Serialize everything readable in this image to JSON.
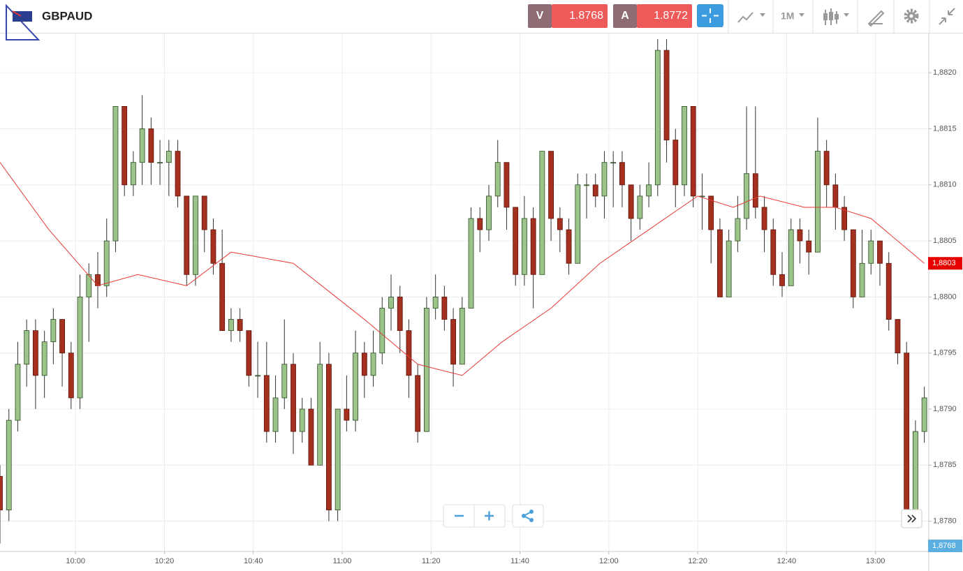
{
  "header": {
    "symbol": "GBPAUD",
    "sell_label": "V",
    "sell_price": "1.8768",
    "buy_label": "A",
    "buy_price": "1.8772",
    "timeframe": "1M"
  },
  "chart_data": {
    "type": "candlestick",
    "x": [
      "09:43",
      "09:45",
      "09:47",
      "09:49",
      "09:51",
      "09:53",
      "09:55",
      "09:57",
      "09:59",
      "10:01",
      "10:03",
      "10:05",
      "10:07",
      "10:09",
      "10:11",
      "10:13",
      "10:15",
      "10:17",
      "10:19",
      "10:21",
      "10:23",
      "10:25",
      "10:27",
      "10:29",
      "10:31",
      "10:33",
      "10:35",
      "10:37",
      "10:39",
      "10:41",
      "10:43",
      "10:45",
      "10:47",
      "10:49",
      "10:51",
      "10:53",
      "10:55",
      "10:57",
      "10:59",
      "11:01",
      "11:03",
      "11:05",
      "11:07",
      "11:09",
      "11:11",
      "11:13",
      "11:15",
      "11:17",
      "11:19",
      "11:21",
      "11:23",
      "11:25",
      "11:27",
      "11:29",
      "11:31",
      "11:33",
      "11:35",
      "11:37",
      "11:39",
      "11:41",
      "11:43",
      "11:45",
      "11:47",
      "11:49",
      "11:51",
      "11:53",
      "11:55",
      "11:57",
      "11:59",
      "12:01",
      "12:03",
      "12:05",
      "12:07",
      "12:09",
      "12:11",
      "12:13",
      "12:15",
      "12:17",
      "12:19",
      "12:21",
      "12:23",
      "12:25",
      "12:27",
      "12:29",
      "12:31",
      "12:33",
      "12:35",
      "12:37",
      "12:39",
      "12:41",
      "12:43",
      "12:45",
      "12:47",
      "12:49",
      "12:51",
      "12:53",
      "12:55",
      "12:57",
      "12:59",
      "13:01",
      "13:03",
      "13:05",
      "13:07",
      "13:09",
      "13:11"
    ],
    "open": [
      1.8784,
      1.8781,
      1.8789,
      1.8794,
      1.8797,
      1.8793,
      1.8796,
      1.8798,
      1.8795,
      1.8791,
      1.88,
      1.8802,
      1.8801,
      1.8805,
      1.8817,
      1.881,
      1.8812,
      1.8815,
      1.8812,
      1.8812,
      1.8813,
      1.8809,
      1.8802,
      1.8809,
      1.8806,
      1.8803,
      1.8797,
      1.8798,
      1.8797,
      1.8793,
      1.8793,
      1.8788,
      1.8791,
      1.8794,
      1.8788,
      1.879,
      1.8785,
      1.8794,
      1.8781,
      1.879,
      1.8789,
      1.8795,
      1.8793,
      1.8795,
      1.8799,
      1.88,
      1.8797,
      1.8793,
      1.8788,
      1.8799,
      1.88,
      1.8798,
      1.8794,
      1.8799,
      1.8807,
      1.8806,
      1.8809,
      1.8812,
      1.8808,
      1.8802,
      1.8807,
      1.8802,
      1.8813,
      1.8807,
      1.8806,
      1.8803,
      1.881,
      1.881,
      1.8809,
      1.8812,
      1.8812,
      1.881,
      1.8807,
      1.8809,
      1.881,
      1.8822,
      1.8814,
      1.881,
      1.8817,
      1.8809,
      1.8809,
      1.8806,
      1.88,
      1.8805,
      1.8807,
      1.8811,
      1.8808,
      1.8806,
      1.8802,
      1.8801,
      1.8806,
      1.8805,
      1.8804,
      1.8813,
      1.881,
      1.8808,
      1.8806,
      1.88,
      1.8803,
      1.8805,
      1.8803,
      1.8798,
      1.8795,
      1.8781,
      1.8788
    ],
    "high": [
      1.8785,
      1.879,
      1.8796,
      1.8798,
      1.8798,
      1.8797,
      1.8799,
      1.8798,
      1.8796,
      1.8802,
      1.8803,
      1.8804,
      1.8807,
      1.8817,
      1.8817,
      1.8813,
      1.8818,
      1.8816,
      1.8814,
      1.8814,
      1.8814,
      1.8809,
      1.8809,
      1.8809,
      1.8807,
      1.8806,
      1.8799,
      1.8799,
      1.8797,
      1.8796,
      1.8796,
      1.8793,
      1.8798,
      1.8795,
      1.8791,
      1.8791,
      1.8796,
      1.8795,
      1.879,
      1.8793,
      1.8797,
      1.8796,
      1.8797,
      1.88,
      1.8802,
      1.8801,
      1.8798,
      1.8794,
      1.88,
      1.8802,
      1.8801,
      1.8799,
      1.88,
      1.8808,
      1.8808,
      1.881,
      1.8814,
      1.8812,
      1.8808,
      1.8809,
      1.8808,
      1.8813,
      1.8813,
      1.8808,
      1.8807,
      1.8811,
      1.8811,
      1.8811,
      1.8813,
      1.8813,
      1.8813,
      1.881,
      1.881,
      1.8812,
      1.8823,
      1.8823,
      1.8815,
      1.8817,
      1.8817,
      1.8811,
      1.8809,
      1.8807,
      1.8806,
      1.8809,
      1.8817,
      1.8817,
      1.8809,
      1.8807,
      1.8804,
      1.8807,
      1.8807,
      1.8806,
      1.8816,
      1.8814,
      1.8811,
      1.8809,
      1.8806,
      1.8806,
      1.8806,
      1.8805,
      1.8804,
      1.8798,
      1.8796,
      1.8789,
      1.8792
    ],
    "low": [
      1.8778,
      1.878,
      1.8788,
      1.8792,
      1.879,
      1.8791,
      1.8794,
      1.8792,
      1.879,
      1.879,
      1.8796,
      1.8799,
      1.88,
      1.8804,
      1.8809,
      1.8809,
      1.881,
      1.881,
      1.881,
      1.8809,
      1.8808,
      1.8801,
      1.8801,
      1.8804,
      1.8802,
      1.8797,
      1.8796,
      1.8796,
      1.8792,
      1.8791,
      1.8787,
      1.8787,
      1.879,
      1.8786,
      1.8787,
      1.8785,
      1.8785,
      1.878,
      1.878,
      1.8788,
      1.8788,
      1.8791,
      1.8792,
      1.8794,
      1.8797,
      1.8795,
      1.8791,
      1.8787,
      1.8788,
      1.8798,
      1.8797,
      1.8792,
      1.8794,
      1.8799,
      1.8804,
      1.8805,
      1.8808,
      1.8806,
      1.8801,
      1.8801,
      1.8799,
      1.8802,
      1.8805,
      1.8804,
      1.8802,
      1.8803,
      1.8807,
      1.8808,
      1.8807,
      1.8808,
      1.8808,
      1.8805,
      1.8806,
      1.8808,
      1.8809,
      1.8812,
      1.8808,
      1.8809,
      1.8808,
      1.8806,
      1.8803,
      1.88,
      1.88,
      1.8804,
      1.8806,
      1.8807,
      1.8804,
      1.8801,
      1.88,
      1.8801,
      1.8803,
      1.8802,
      1.8804,
      1.8808,
      1.8806,
      1.8805,
      1.8799,
      1.88,
      1.8802,
      1.8801,
      1.8797,
      1.8794,
      1.878,
      1.878,
      1.8787
    ],
    "close": [
      1.8781,
      1.8789,
      1.8794,
      1.8797,
      1.8793,
      1.8796,
      1.8798,
      1.8795,
      1.8791,
      1.88,
      1.8802,
      1.8801,
      1.8805,
      1.8817,
      1.881,
      1.8812,
      1.8815,
      1.8812,
      1.8812,
      1.8813,
      1.8809,
      1.8802,
      1.8809,
      1.8806,
      1.8803,
      1.8797,
      1.8798,
      1.8797,
      1.8793,
      1.8793,
      1.8788,
      1.8791,
      1.8794,
      1.8788,
      1.879,
      1.8785,
      1.8794,
      1.8781,
      1.879,
      1.8789,
      1.8795,
      1.8793,
      1.8795,
      1.8799,
      1.88,
      1.8797,
      1.8793,
      1.8788,
      1.8799,
      1.88,
      1.8798,
      1.8794,
      1.8799,
      1.8807,
      1.8806,
      1.8809,
      1.8812,
      1.8808,
      1.8802,
      1.8807,
      1.8802,
      1.8813,
      1.8807,
      1.8806,
      1.8803,
      1.881,
      1.881,
      1.8809,
      1.8812,
      1.8812,
      1.881,
      1.8807,
      1.8809,
      1.881,
      1.8822,
      1.8814,
      1.881,
      1.8817,
      1.8809,
      1.8809,
      1.8806,
      1.88,
      1.8805,
      1.8807,
      1.8811,
      1.8808,
      1.8806,
      1.8802,
      1.8801,
      1.8806,
      1.8805,
      1.8804,
      1.8813,
      1.881,
      1.8808,
      1.8806,
      1.88,
      1.8803,
      1.8805,
      1.8803,
      1.8798,
      1.8795,
      1.8781,
      1.8788,
      1.8791
    ],
    "up_color": "#9cc48a",
    "down_color": "#a5301f",
    "moving_average": {
      "color": "#e53935",
      "x": [
        "09:43",
        "09:54",
        "10:05",
        "10:14",
        "10:25",
        "10:35",
        "10:49",
        "11:05",
        "11:17",
        "11:27",
        "11:36",
        "11:47",
        "11:58",
        "12:09",
        "12:20",
        "12:28",
        "12:34",
        "12:44",
        "12:51",
        "12:59",
        "13:11"
      ],
      "values": [
        1.8812,
        1.8806,
        1.8801,
        1.8802,
        1.8801,
        1.8804,
        1.8803,
        1.8798,
        1.8794,
        1.8793,
        1.8796,
        1.8799,
        1.8803,
        1.8806,
        1.8809,
        1.8808,
        1.8809,
        1.8808,
        1.8808,
        1.8807,
        1.8803
      ]
    },
    "xlim": [
      "09:43",
      "13:12"
    ],
    "xticks": [
      "10:00",
      "10:20",
      "10:40",
      "11:00",
      "11:20",
      "11:40",
      "12:00",
      "12:20",
      "12:40",
      "13:00"
    ],
    "ylim": [
      1.87773,
      1.88235
    ],
    "yticks": [
      {
        "value": 1.878,
        "label": "1,8780"
      },
      {
        "value": 1.8785,
        "label": "1,8785"
      },
      {
        "value": 1.879,
        "label": "1,8790"
      },
      {
        "value": 1.8795,
        "label": "1,8795"
      },
      {
        "value": 1.88,
        "label": "1,8800"
      },
      {
        "value": 1.8805,
        "label": "1,8805"
      },
      {
        "value": 1.881,
        "label": "1,8810"
      },
      {
        "value": 1.8815,
        "label": "1,8815"
      },
      {
        "value": 1.882,
        "label": "1,8820"
      }
    ],
    "grid": true,
    "ma_tag": {
      "value": 1.8803,
      "label": "1,8803",
      "color": "#e80000"
    },
    "last_price_tag": {
      "value": 1.8768,
      "label": "1,8768",
      "color": "#5aaee0"
    }
  }
}
